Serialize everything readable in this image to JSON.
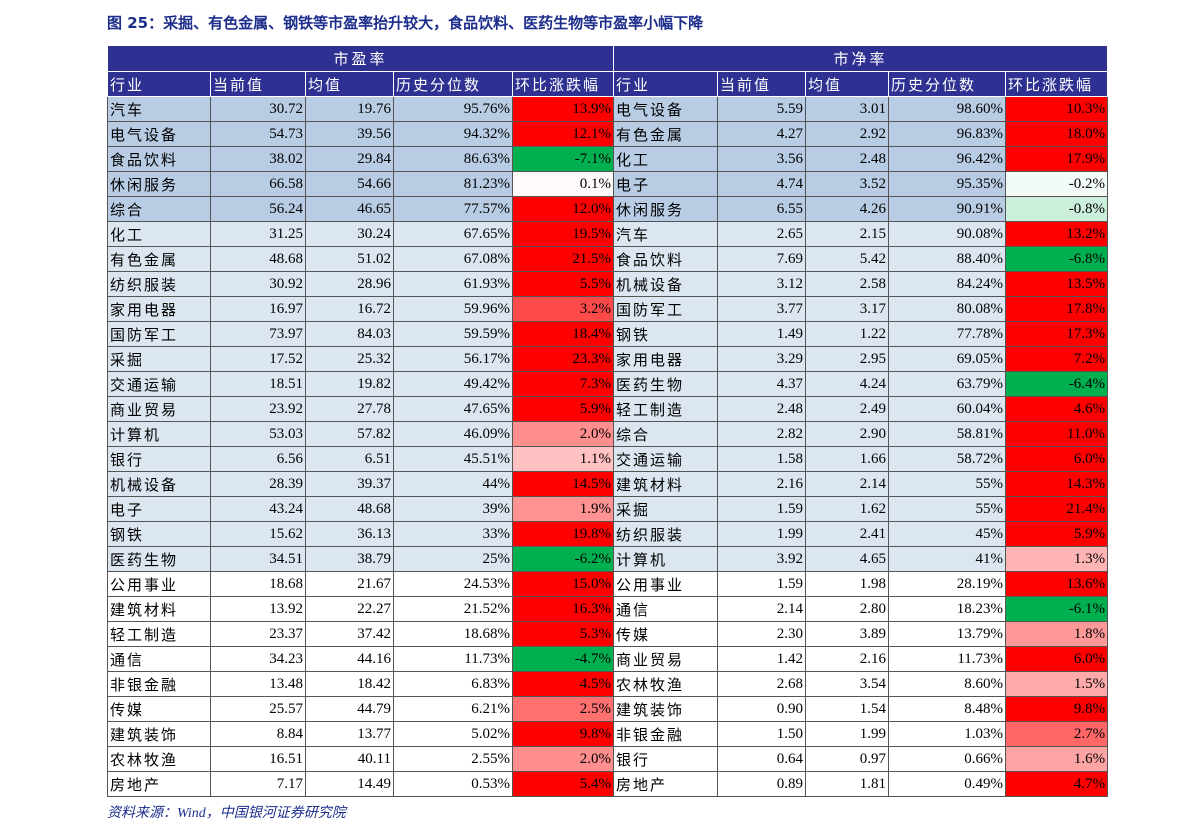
{
  "title": "图 25：采掘、有色金属、钢铁等市盈率抬升较大，食品饮料、医药生物等市盈率小幅下降",
  "table": {
    "groups": [
      "市盈率",
      "市净率"
    ],
    "columns": [
      "行业",
      "当前值",
      "均值",
      "历史分位数",
      "环比涨跌幅",
      "行业",
      "当前值",
      "均值",
      "历史分位数",
      "环比涨跌幅"
    ],
    "rows": [
      [
        "汽车",
        "30.72",
        "19.76",
        "95.76%",
        "13.9%",
        "电气设备",
        "5.59",
        "3.01",
        "98.60%",
        "10.3%"
      ],
      [
        "电气设备",
        "54.73",
        "39.56",
        "94.32%",
        "12.1%",
        "有色金属",
        "4.27",
        "2.92",
        "96.83%",
        "18.0%"
      ],
      [
        "食品饮料",
        "38.02",
        "29.84",
        "86.63%",
        "-7.1%",
        "化工",
        "3.56",
        "2.48",
        "96.42%",
        "17.9%"
      ],
      [
        "休闲服务",
        "66.58",
        "54.66",
        "81.23%",
        "0.1%",
        "电子",
        "4.74",
        "3.52",
        "95.35%",
        "-0.2%"
      ],
      [
        "综合",
        "56.24",
        "46.65",
        "77.57%",
        "12.0%",
        "休闲服务",
        "6.55",
        "4.26",
        "90.91%",
        "-0.8%"
      ],
      [
        "化工",
        "31.25",
        "30.24",
        "67.65%",
        "19.5%",
        "汽车",
        "2.65",
        "2.15",
        "90.08%",
        "13.2%"
      ],
      [
        "有色金属",
        "48.68",
        "51.02",
        "67.08%",
        "21.5%",
        "食品饮料",
        "7.69",
        "5.42",
        "88.40%",
        "-6.8%"
      ],
      [
        "纺织服装",
        "30.92",
        "28.96",
        "61.93%",
        "5.5%",
        "机械设备",
        "3.12",
        "2.58",
        "84.24%",
        "13.5%"
      ],
      [
        "家用电器",
        "16.97",
        "16.72",
        "59.96%",
        "3.2%",
        "国防军工",
        "3.77",
        "3.17",
        "80.08%",
        "17.8%"
      ],
      [
        "国防军工",
        "73.97",
        "84.03",
        "59.59%",
        "18.4%",
        "钢铁",
        "1.49",
        "1.22",
        "77.78%",
        "17.3%"
      ],
      [
        "采掘",
        "17.52",
        "25.32",
        "56.17%",
        "23.3%",
        "家用电器",
        "3.29",
        "2.95",
        "69.05%",
        "7.2%"
      ],
      [
        "交通运输",
        "18.51",
        "19.82",
        "49.42%",
        "7.3%",
        "医药生物",
        "4.37",
        "4.24",
        "63.79%",
        "-6.4%"
      ],
      [
        "商业贸易",
        "23.92",
        "27.78",
        "47.65%",
        "5.9%",
        "轻工制造",
        "2.48",
        "2.49",
        "60.04%",
        "4.6%"
      ],
      [
        "计算机",
        "53.03",
        "57.82",
        "46.09%",
        "2.0%",
        "综合",
        "2.82",
        "2.90",
        "58.81%",
        "11.0%"
      ],
      [
        "银行",
        "6.56",
        "6.51",
        "45.51%",
        "1.1%",
        "交通运输",
        "1.58",
        "1.66",
        "58.72%",
        "6.0%"
      ],
      [
        "机械设备",
        "28.39",
        "39.37",
        "44%",
        "14.5%",
        "建筑材料",
        "2.16",
        "2.14",
        "55%",
        "14.3%"
      ],
      [
        "电子",
        "43.24",
        "48.68",
        "39%",
        "1.9%",
        "采掘",
        "1.59",
        "1.62",
        "55%",
        "21.4%"
      ],
      [
        "钢铁",
        "15.62",
        "36.13",
        "33%",
        "19.8%",
        "纺织服装",
        "1.99",
        "2.41",
        "45%",
        "5.9%"
      ],
      [
        "医药生物",
        "34.51",
        "38.79",
        "25%",
        "-6.2%",
        "计算机",
        "3.92",
        "4.65",
        "41%",
        "1.3%"
      ],
      [
        "公用事业",
        "18.68",
        "21.67",
        "24.53%",
        "15.0%",
        "公用事业",
        "1.59",
        "1.98",
        "28.19%",
        "13.6%"
      ],
      [
        "建筑材料",
        "13.92",
        "22.27",
        "21.52%",
        "16.3%",
        "通信",
        "2.14",
        "2.80",
        "18.23%",
        "-6.1%"
      ],
      [
        "轻工制造",
        "23.37",
        "37.42",
        "18.68%",
        "5.3%",
        "传媒",
        "2.30",
        "3.89",
        "13.79%",
        "1.8%"
      ],
      [
        "通信",
        "34.23",
        "44.16",
        "11.73%",
        "-4.7%",
        "商业贸易",
        "1.42",
        "2.16",
        "11.73%",
        "6.0%"
      ],
      [
        "非银金融",
        "13.48",
        "18.42",
        "6.83%",
        "4.5%",
        "农林牧渔",
        "2.68",
        "3.54",
        "8.60%",
        "1.5%"
      ],
      [
        "传媒",
        "25.57",
        "44.79",
        "6.21%",
        "2.5%",
        "建筑装饰",
        "0.90",
        "1.54",
        "8.48%",
        "9.8%"
      ],
      [
        "建筑装饰",
        "8.84",
        "13.77",
        "5.02%",
        "9.8%",
        "非银金融",
        "1.50",
        "1.99",
        "1.03%",
        "2.7%"
      ],
      [
        "农林牧渔",
        "16.51",
        "40.11",
        "2.55%",
        "2.0%",
        "银行",
        "0.64",
        "0.97",
        "0.66%",
        "1.6%"
      ],
      [
        "房地产",
        "7.17",
        "14.49",
        "0.53%",
        "5.4%",
        "房地产",
        "0.89",
        "1.81",
        "0.49%",
        "4.7%"
      ]
    ]
  },
  "source": "资料来源：Wind，中国银河证券研究院"
}
